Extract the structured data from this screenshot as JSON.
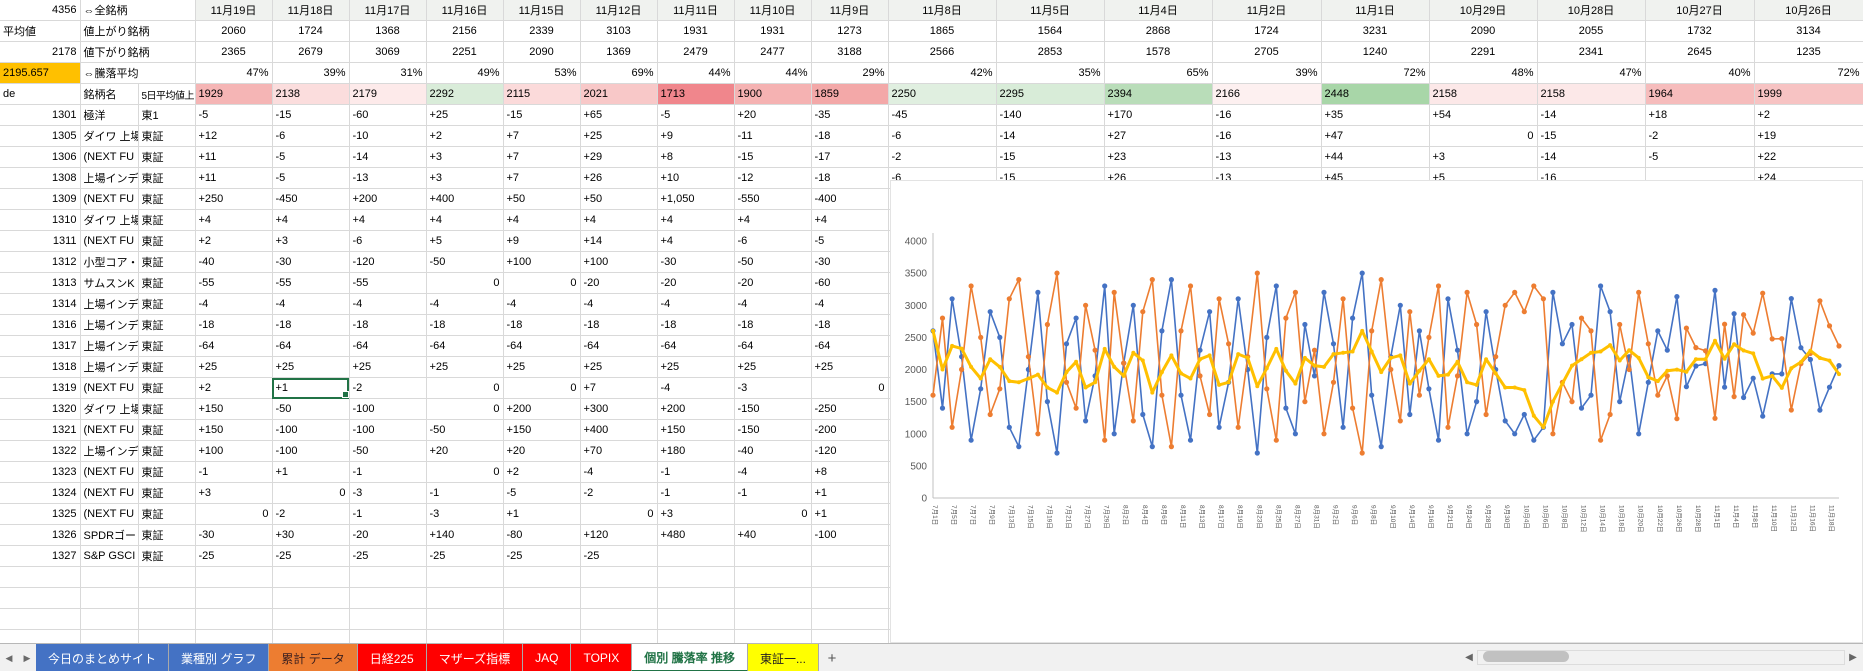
{
  "header": {
    "a1": "4356",
    "b1": "⇔全銘柄",
    "a2": "平均値",
    "b2": "値上がり銘柄",
    "a3": "2178",
    "b3": "値下がり銘柄",
    "a4": "2195.657",
    "b4": "⇔騰落平均",
    "a5": "de",
    "b5": "銘柄名",
    "c5": "5日平均値上",
    "a4_bg": "#ffc000"
  },
  "dates": [
    "11月19日",
    "11月18日",
    "11月17日",
    "11月16日",
    "11月15日",
    "11月12日",
    "11月11日",
    "11月10日",
    "11月9日",
    "11月8日",
    "11月5日",
    "11月4日",
    "11月2日",
    "11月1日",
    "10月29日",
    "10月28日",
    "10月27日",
    "10月26日"
  ],
  "up_counts": [
    "2060",
    "1724",
    "1368",
    "2156",
    "2339",
    "3103",
    "1931",
    "1931",
    "1273",
    "1865",
    "1564",
    "2868",
    "1724",
    "3231",
    "2090",
    "2055",
    "1732",
    "3134"
  ],
  "down_counts": [
    "2365",
    "2679",
    "3069",
    "2251",
    "2090",
    "1369",
    "2479",
    "2477",
    "3188",
    "2566",
    "2853",
    "1578",
    "2705",
    "1240",
    "2291",
    "2341",
    "2645",
    "1235"
  ],
  "pcts": [
    "47%",
    "39%",
    "31%",
    "49%",
    "53%",
    "69%",
    "44%",
    "44%",
    "29%",
    "42%",
    "35%",
    "65%",
    "39%",
    "72%",
    "48%",
    "47%",
    "40%",
    "72%"
  ],
  "avg5": [
    "1929",
    "2138",
    "2179",
    "2292",
    "2115",
    "2021",
    "1713",
    "1900",
    "1859",
    "2250",
    "2295",
    "2394",
    "2166",
    "2448",
    "2158",
    "2158",
    "1964",
    "1999"
  ],
  "avg5_colors": [
    "#f5b5b5",
    "#fbdddd",
    "#fdeaea",
    "#d9ecd9",
    "#fbdada",
    "#f8c8c8",
    "#f0868c",
    "#f5b2b2",
    "#f3a8a8",
    "#e0efe0",
    "#d8ecd8",
    "#b9ddb9",
    "#fdf0f0",
    "#a8d6a8",
    "#fce8e8",
    "#fce8e8",
    "#f6bcbc",
    "#f7c3c3"
  ],
  "selection": {
    "stock_index": 13,
    "date_index": 1
  },
  "stocks": [
    {
      "code": "1301",
      "name": "極洋",
      "market": "東1",
      "values": [
        "-5",
        "-15",
        "-60",
        "+25",
        "-15",
        "+65",
        "-5",
        "+20",
        "-35",
        "-45",
        "-140",
        "+170",
        "-16",
        "+35",
        "+54",
        "-14",
        "+18",
        "+2"
      ]
    },
    {
      "code": "1305",
      "name": "ダイワ 上場",
      "market": "東証",
      "values": [
        "+12",
        "-6",
        "-10",
        "+2",
        "+7",
        "+25",
        "+9",
        "-11",
        "-18",
        "-6",
        "-14",
        "+27",
        "-16",
        "+47",
        "0",
        "-15",
        "-2",
        "+19"
      ]
    },
    {
      "code": "1306",
      "name": "(NEXT FU",
      "market": "東証",
      "values": [
        "+11",
        "-5",
        "-14",
        "+3",
        "+7",
        "+29",
        "+8",
        "-15",
        "-17",
        "-2",
        "-15",
        "+23",
        "-13",
        "+44",
        "+3",
        "-14",
        "-5",
        "+22"
      ]
    },
    {
      "code": "1308",
      "name": "上場インデ",
      "market": "東証",
      "values": [
        "+11",
        "-5",
        "-13",
        "+3",
        "+7",
        "+26",
        "+10",
        "-12",
        "-18",
        "-6",
        "-15",
        "+26",
        "-13",
        "+45",
        "+5",
        "-16",
        "",
        "+24"
      ]
    },
    {
      "code": "1309",
      "name": "(NEXT FU",
      "market": "東証",
      "values": [
        "+250",
        "-450",
        "+200",
        "+400",
        "+50",
        "+50",
        "+1,050",
        "-550",
        "-400",
        "",
        "",
        "",
        "",
        "",
        "",
        "",
        "",
        ""
      ]
    },
    {
      "code": "1310",
      "name": "ダイワ 上場",
      "market": "東証",
      "values": [
        "+4",
        "+4",
        "+4",
        "+4",
        "+4",
        "+4",
        "+4",
        "+4",
        "+4",
        "",
        "",
        "",
        "",
        "",
        "",
        "",
        "",
        ""
      ]
    },
    {
      "code": "1311",
      "name": "(NEXT FU",
      "market": "東証",
      "values": [
        "+2",
        "+3",
        "-6",
        "+5",
        "+9",
        "+14",
        "+4",
        "-6",
        "-5",
        "",
        "",
        "",
        "",
        "",
        "",
        "",
        "",
        ""
      ]
    },
    {
      "code": "1312",
      "name": "小型コア・",
      "market": "東証",
      "values": [
        "-40",
        "-30",
        "-120",
        "-50",
        "+100",
        "+100",
        "-30",
        "-50",
        "-30",
        "",
        "",
        "",
        "",
        "",
        "",
        "",
        "",
        ""
      ]
    },
    {
      "code": "1313",
      "name": "サムスンK",
      "market": "東証",
      "values": [
        "-55",
        "-55",
        "-55",
        "0",
        "0",
        "-20",
        "-20",
        "-20",
        "-60",
        "",
        "",
        "",
        "",
        "",
        "",
        "",
        "",
        ""
      ]
    },
    {
      "code": "1314",
      "name": "上場インデ",
      "market": "東証",
      "values": [
        "-4",
        "-4",
        "-4",
        "-4",
        "-4",
        "-4",
        "-4",
        "-4",
        "-4",
        "",
        "",
        "",
        "",
        "",
        "",
        "",
        "",
        ""
      ]
    },
    {
      "code": "1316",
      "name": "上場インデ",
      "market": "東証",
      "values": [
        "-18",
        "-18",
        "-18",
        "-18",
        "-18",
        "-18",
        "-18",
        "-18",
        "-18",
        "",
        "",
        "",
        "",
        "",
        "",
        "",
        "",
        ""
      ]
    },
    {
      "code": "1317",
      "name": "上場インデ",
      "market": "東証",
      "values": [
        "-64",
        "-64",
        "-64",
        "-64",
        "-64",
        "-64",
        "-64",
        "-64",
        "-64",
        "",
        "",
        "",
        "",
        "",
        "",
        "",
        "",
        ""
      ]
    },
    {
      "code": "1318",
      "name": "上場インデ",
      "market": "東証",
      "values": [
        "+25",
        "+25",
        "+25",
        "+25",
        "+25",
        "+25",
        "+25",
        "+25",
        "+25",
        "",
        "",
        "",
        "",
        "",
        "",
        "",
        "",
        ""
      ]
    },
    {
      "code": "1319",
      "name": "(NEXT FU",
      "market": "東証",
      "values": [
        "+2",
        "+1",
        "-2",
        "0",
        "0",
        "+7",
        "-4",
        "-3",
        "0",
        "",
        "",
        "",
        "",
        "",
        "",
        "",
        "",
        ""
      ]
    },
    {
      "code": "1320",
      "name": "ダイワ 上場",
      "market": "東証",
      "values": [
        "+150",
        "-50",
        "-100",
        "0",
        "+200",
        "+300",
        "+200",
        "-150",
        "-250",
        "",
        "",
        "",
        "",
        "",
        "",
        "",
        "",
        ""
      ]
    },
    {
      "code": "1321",
      "name": "(NEXT FU",
      "market": "東証",
      "values": [
        "+150",
        "-100",
        "-100",
        "-50",
        "+150",
        "+400",
        "+150",
        "-150",
        "-200",
        "",
        "",
        "",
        "",
        "",
        "",
        "",
        "",
        ""
      ]
    },
    {
      "code": "1322",
      "name": "上場インデ",
      "market": "東証",
      "values": [
        "+100",
        "-100",
        "-50",
        "+20",
        "+20",
        "+70",
        "+180",
        "-40",
        "-120",
        "",
        "",
        "",
        "",
        "",
        "",
        "",
        "",
        ""
      ]
    },
    {
      "code": "1323",
      "name": "(NEXT FU",
      "market": "東証",
      "values": [
        "-1",
        "+1",
        "-1",
        "0",
        "+2",
        "-4",
        "-1",
        "-4",
        "+8",
        "",
        "",
        "",
        "",
        "",
        "",
        "",
        "",
        ""
      ]
    },
    {
      "code": "1324",
      "name": "(NEXT FU",
      "market": "東証",
      "values": [
        "+3",
        "0",
        "-3",
        "-1",
        "-5",
        "-2",
        "-1",
        "-1",
        "+1",
        "",
        "",
        "",
        "",
        "",
        "",
        "",
        "",
        ""
      ]
    },
    {
      "code": "1325",
      "name": "(NEXT FU",
      "market": "東証",
      "values": [
        "0",
        "-2",
        "-1",
        "-3",
        "+1",
        "0",
        "+3",
        "0",
        "+1",
        "",
        "",
        "",
        "",
        "",
        "",
        "",
        "",
        ""
      ]
    },
    {
      "code": "1326",
      "name": "SPDRゴー",
      "market": "東証",
      "values": [
        "-30",
        "+30",
        "-20",
        "+140",
        "-80",
        "+120",
        "+480",
        "+40",
        "-100",
        "",
        "",
        "",
        "",
        "",
        "",
        "",
        "",
        ""
      ]
    },
    {
      "code": "1327",
      "name": "S&P GSCI",
      "market": "東証",
      "values": [
        "-25",
        "-25",
        "-25",
        "-25",
        "-25",
        "-25",
        "",
        "",
        "",
        "",
        "",
        "",
        "",
        "",
        "",
        "",
        "",
        ""
      ]
    }
  ],
  "tab_bar": {
    "nav_left": "◀",
    "nav_right": "▶",
    "add_label": "+",
    "scroll_left": "◀",
    "scroll_right": "▶",
    "tabs": [
      {
        "label": "今日のまとめサイト",
        "bg": "#4472c4",
        "fg": "#ffffff",
        "active": false
      },
      {
        "label": "業種別 グラフ",
        "bg": "#4472c4",
        "fg": "#ffffff",
        "active": false
      },
      {
        "label": "累計 データ",
        "bg": "#ed7d31",
        "fg": "#3b1f1f",
        "active": false
      },
      {
        "label": "日経225",
        "bg": "#ff0000",
        "fg": "#ffffff",
        "active": false
      },
      {
        "label": "マザーズ指標",
        "bg": "#ff0000",
        "fg": "#ffffff",
        "active": false
      },
      {
        "label": "JAQ",
        "bg": "#ff0000",
        "fg": "#ffffff",
        "active": false
      },
      {
        "label": "TOPIX",
        "bg": "#ff0000",
        "fg": "#ffffff",
        "active": false
      },
      {
        "label": "個別 騰落率 推移",
        "bg": "#ffffff",
        "fg": "#217346",
        "active": true
      },
      {
        "label": "東証一...",
        "bg": "#ffff00",
        "fg": "#231f20",
        "active": false
      }
    ]
  },
  "chart_data": {
    "type": "line",
    "title": "",
    "ylim": [
      0,
      4000
    ],
    "ytick_step": 500,
    "grid": "off",
    "legend": "none",
    "x": [
      "7月1日",
      "7月2日",
      "7月5日",
      "7月6日",
      "7月7日",
      "7月8日",
      "7月9日",
      "7月12日",
      "7月13日",
      "7月14日",
      "7月15日",
      "7月16日",
      "7月19日",
      "7月20日",
      "7月21日",
      "7月26日",
      "7月27日",
      "7月28日",
      "7月29日",
      "7月30日",
      "8月2日",
      "8月3日",
      "8月4日",
      "8月5日",
      "8月6日",
      "8月10日",
      "8月11日",
      "8月12日",
      "8月13日",
      "8月16日",
      "8月17日",
      "8月18日",
      "8月19日",
      "8月20日",
      "8月23日",
      "8月24日",
      "8月25日",
      "8月26日",
      "8月27日",
      "8月30日",
      "8月31日",
      "9月1日",
      "9月2日",
      "9月3日",
      "9月6日",
      "9月7日",
      "9月8日",
      "9月9日",
      "9月10日",
      "9月13日",
      "9月14日",
      "9月15日",
      "9月16日",
      "9月17日",
      "9月21日",
      "9月22日",
      "9月24日",
      "9月27日",
      "9月28日",
      "9月29日",
      "9月30日",
      "10月1日",
      "10月4日",
      "10月5日",
      "10月6日",
      "10月7日",
      "10月8日",
      "10月11日",
      "10月12日",
      "10月13日",
      "10月14日",
      "10月15日",
      "10月18日",
      "10月19日",
      "10月20日",
      "10月21日",
      "10月22日",
      "10月25日",
      "10月26日",
      "10月27日",
      "10月28日",
      "10月29日",
      "11月1日",
      "11月2日",
      "11月4日",
      "11月5日",
      "11月8日",
      "11月9日",
      "11月10日",
      "11月11日",
      "11月12日",
      "11月15日",
      "11月16日",
      "11月17日",
      "11月18日",
      "11月19日"
    ],
    "series": [
      {
        "name": "値上がり銘柄",
        "color": "#4472c4",
        "width": 1.6,
        "marker": 2.6,
        "values": [
          2600,
          1400,
          3100,
          2200,
          900,
          1700,
          2900,
          2500,
          1100,
          800,
          2000,
          3200,
          1500,
          700,
          2400,
          2800,
          1200,
          1900,
          3300,
          1000,
          2100,
          3000,
          1300,
          800,
          2600,
          3400,
          1600,
          900,
          2300,
          2900,
          1100,
          1800,
          3100,
          2000,
          700,
          2500,
          3300,
          1400,
          1000,
          2700,
          1900,
          3200,
          2400,
          1100,
          2800,
          3500,
          1600,
          800,
          2200,
          3000,
          1300,
          2600,
          1700,
          900,
          3100,
          2300,
          1000,
          1500,
          2900,
          2000,
          1200,
          1000,
          1300,
          900,
          1100,
          3200,
          2400,
          2700,
          1400,
          1600,
          3300,
          2900,
          1500,
          2200,
          1000,
          1800,
          2600,
          2300,
          3134,
          1732,
          2055,
          2090,
          3231,
          1724,
          2868,
          1564,
          1865,
          1273,
          1931,
          1931,
          3103,
          2339,
          2156,
          1368,
          1724,
          2060
        ]
      },
      {
        "name": "値下がり銘柄",
        "color": "#ed7d31",
        "width": 1.6,
        "marker": 2.6,
        "values": [
          1600,
          2800,
          1100,
          2000,
          3300,
          2500,
          1300,
          1700,
          3100,
          3400,
          2200,
          1000,
          2700,
          3500,
          1800,
          1400,
          3000,
          2300,
          900,
          3200,
          2100,
          1200,
          2900,
          3400,
          1600,
          800,
          2600,
          3300,
          1900,
          1300,
          3100,
          2400,
          1100,
          2200,
          3500,
          1700,
          900,
          2800,
          3200,
          1500,
          2300,
          1000,
          1800,
          3100,
          1400,
          700,
          2600,
          3400,
          2000,
          1200,
          2900,
          1600,
          2500,
          3300,
          1100,
          1900,
          3200,
          2700,
          1300,
          2200,
          3000,
          3200,
          2900,
          3300,
          3100,
          1000,
          1800,
          1500,
          2800,
          2600,
          900,
          1300,
          2700,
          2000,
          3200,
          2400,
          1600,
          1900,
          1235,
          2645,
          2341,
          2291,
          1240,
          2705,
          1578,
          2853,
          2566,
          3188,
          2477,
          2479,
          1369,
          2090,
          2251,
          3069,
          2679,
          2365
        ]
      },
      {
        "name": "5日平均",
        "color": "#ffc000",
        "width": 3,
        "marker": 2,
        "values": [
          2600,
          2000,
          2367,
          2325,
          2040,
          1860,
          2160,
          2040,
          1820,
          1800,
          1860,
          1920,
          1720,
          1640,
          1960,
          2120,
          1720,
          1800,
          2320,
          2040,
          1900,
          2260,
          2140,
          1640,
          1960,
          2220,
          1940,
          1860,
          2160,
          2220,
          1760,
          1800,
          2240,
          2180,
          1740,
          2020,
          2320,
          1980,
          1780,
          2180,
          2060,
          2040,
          2240,
          2260,
          2280,
          2600,
          2280,
          1960,
          2180,
          2220,
          1780,
          1980,
          2160,
          1900,
          1920,
          2120,
          1800,
          1760,
          2160,
          1940,
          1720,
          1720,
          1680,
          1280,
          1100,
          1500,
          1780,
          2060,
          2160,
          2260,
          2280,
          2380,
          2140,
          2300,
          2180,
          1880,
          1820,
          1980,
          1999,
          1964,
          2158,
          2158,
          2448,
          2166,
          2394,
          2295,
          2250,
          1859,
          1900,
          1713,
          2021,
          2115,
          2292,
          2179,
          2138,
          1929
        ]
      }
    ]
  }
}
